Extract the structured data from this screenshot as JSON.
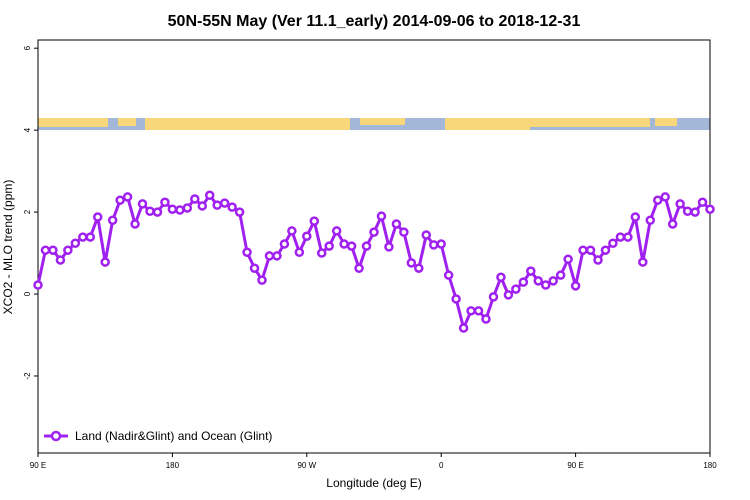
{
  "chart_data": {
    "type": "line",
    "title": "50N-55N May (Ver 11.1_early)   2014-09-06 to 2018-12-31",
    "x_label": "Longitude (deg E)",
    "y_label": "XCO2 - MLO trend (ppm)",
    "xlim": [
      90,
      540
    ],
    "ylim": [
      -3.88,
      6.2
    ],
    "xticks": [
      {
        "value": 90,
        "label": "90 E"
      },
      {
        "value": 180,
        "label": "180"
      },
      {
        "value": 270,
        "label": "90 W"
      },
      {
        "value": 360,
        "label": "0"
      },
      {
        "value": 450,
        "label": "90 E"
      },
      {
        "value": 540,
        "label": "180"
      }
    ],
    "yticks": [
      -2,
      0,
      2,
      4,
      6
    ],
    "legend_position": "bottom-left",
    "x": [
      90,
      95,
      100,
      105,
      110,
      115,
      120,
      125,
      130,
      135,
      140,
      145,
      150,
      155,
      160,
      165,
      170,
      175,
      180,
      185,
      190,
      195,
      200,
      205,
      210,
      215,
      220,
      225,
      230,
      235,
      240,
      245,
      250,
      255,
      260,
      265,
      270,
      275,
      280,
      285,
      290,
      295,
      300,
      305,
      310,
      315,
      320,
      325,
      330,
      335,
      340,
      345,
      350,
      355,
      360,
      365,
      370,
      375,
      380,
      385,
      390,
      395,
      400,
      405,
      410,
      415,
      420,
      425,
      430,
      435,
      440,
      445,
      450,
      455,
      460,
      465,
      470,
      475,
      480,
      485,
      490,
      495,
      500,
      505,
      510,
      515,
      520,
      525,
      530,
      535,
      540
    ],
    "series": [
      {
        "name": "Land (Nadir&Glint) and Ocean (Glint)",
        "color": "#a020f0",
        "values": [
          0.22,
          1.07,
          1.07,
          0.83,
          1.07,
          1.24,
          1.39,
          1.39,
          1.88,
          0.78,
          1.8,
          2.29,
          2.37,
          1.71,
          2.2,
          2.02,
          2.0,
          2.24,
          2.07,
          2.05,
          2.1,
          2.32,
          2.15,
          2.41,
          2.17,
          2.22,
          2.12,
          2.0,
          1.02,
          0.63,
          0.34,
          0.93,
          0.93,
          1.22,
          1.54,
          1.02,
          1.41,
          1.78,
          1.0,
          1.17,
          1.54,
          1.22,
          1.17,
          0.63,
          1.17,
          1.51,
          1.9,
          1.15,
          1.71,
          1.51,
          0.76,
          0.63,
          1.44,
          1.2,
          1.22,
          0.46,
          -0.12,
          -0.83,
          -0.41,
          -0.41,
          -0.61,
          -0.07,
          0.41,
          -0.02,
          0.12,
          0.29,
          0.56,
          0.32,
          0.22,
          0.32,
          0.46,
          0.85,
          0.2,
          1.07,
          1.07,
          0.83,
          1.07,
          1.24,
          1.39,
          1.39,
          1.88,
          0.78,
          1.8,
          2.29,
          2.37,
          1.71,
          2.2,
          2.02,
          2.0,
          2.24,
          2.07
        ]
      }
    ]
  }
}
